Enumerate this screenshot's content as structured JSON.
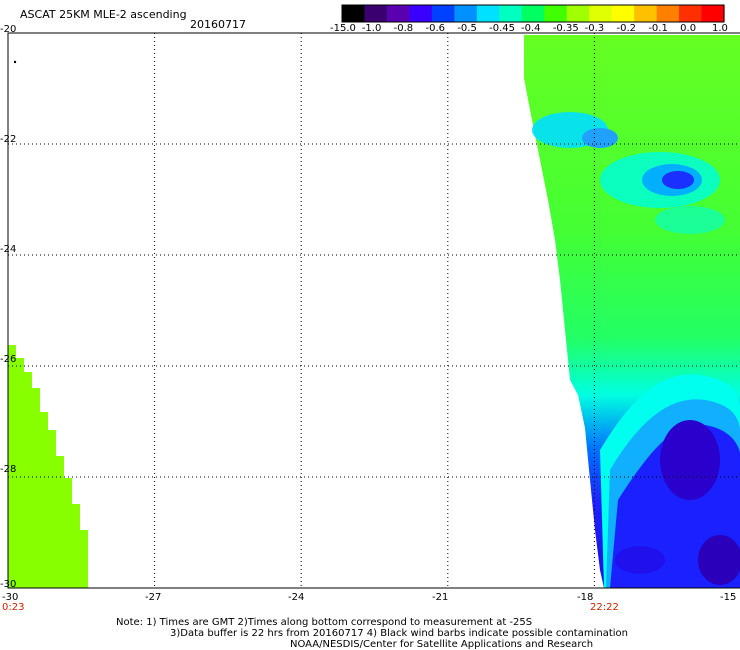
{
  "header": {
    "title": "ASCAT 25KM MLE-2 ascending",
    "date": "20160717"
  },
  "colorbar": {
    "labels": [
      "-15.0",
      "-1.0",
      "-0.8",
      "-0.6",
      "-0.5",
      "-0.45",
      "-0.4",
      "-0.35",
      "-0.3",
      "-0.2",
      "-0.1",
      "0.0",
      "1.0"
    ],
    "colors": [
      "#000000",
      "#3a0070",
      "#5a00b0",
      "#3a00ff",
      "#0040ff",
      "#0090ff",
      "#00e0ff",
      "#00ffc0",
      "#00ff60",
      "#40ff00",
      "#a0ff00",
      "#e0ff00",
      "#ffff00",
      "#ffc000",
      "#ff8000",
      "#ff3000",
      "#ff0000"
    ]
  },
  "map": {
    "lat_labels": [
      "-20",
      "-22",
      "-24",
      "-26",
      "-28",
      "-30"
    ],
    "lon_labels": [
      "-30",
      "-27",
      "-24",
      "-21",
      "-18",
      "-15"
    ],
    "time_left": "0:23",
    "time_right": "22:22",
    "lat_range": [
      -30,
      -20
    ],
    "lon_range": [
      -30,
      -15
    ],
    "swath_colors": {
      "green": "#66ff22",
      "yellowgreen": "#88ff00",
      "cyan": "#00ffff",
      "sky": "#00c8ff",
      "blue": "#1a1aff",
      "darkblue": "#2200cc",
      "purple": "#3a0090"
    }
  },
  "notes": {
    "line1": "Note: 1) Times are GMT 2)Times along bottom correspond to measurement at -25S",
    "line2": "3)Data buffer is 22 hrs from 20160717 4) Black wind barbs indicate possible contamination",
    "line3": "NOAA/NESDIS/Center for Satellite Applications and Research"
  }
}
